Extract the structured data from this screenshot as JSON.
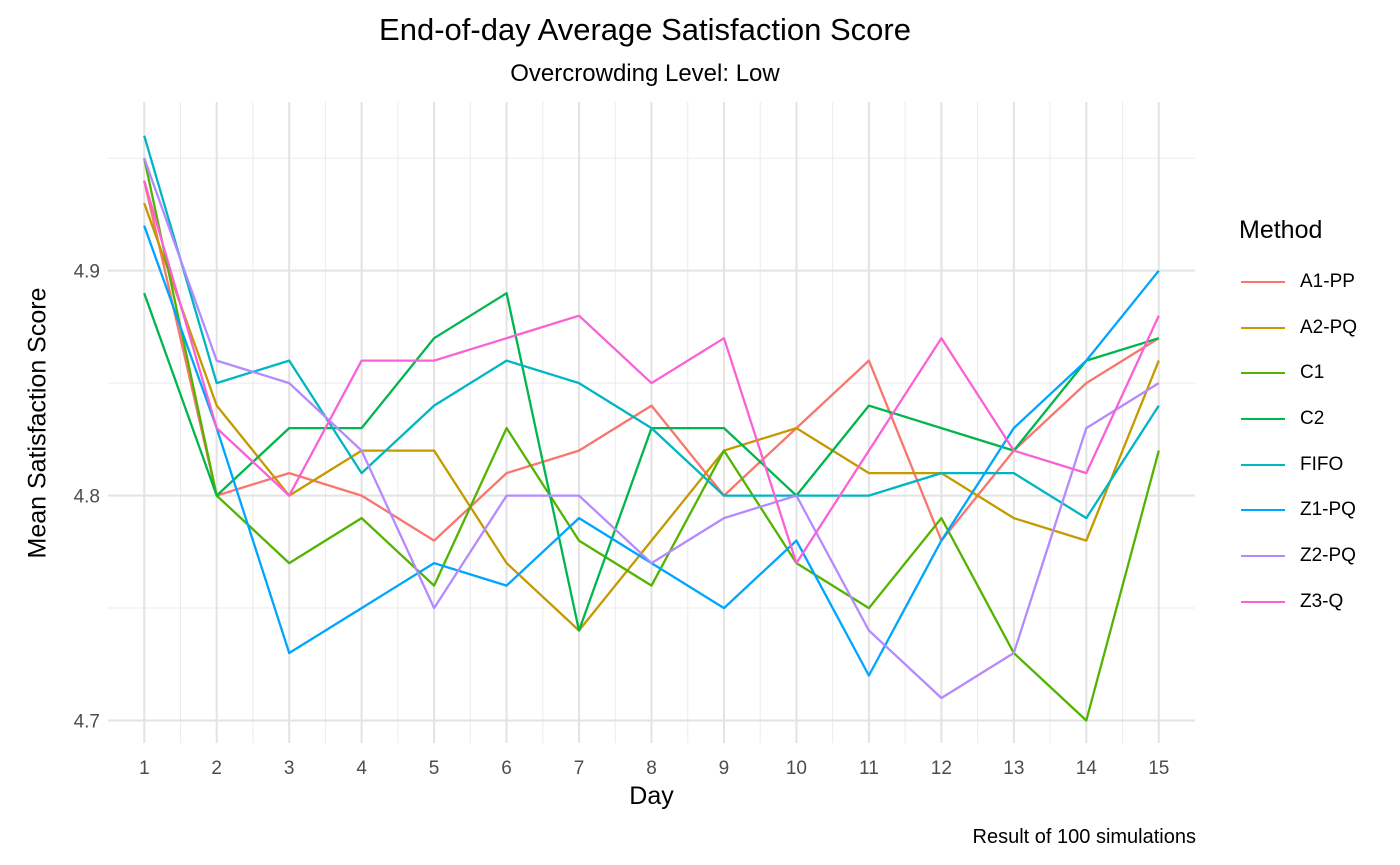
{
  "chart_data": {
    "type": "line",
    "title": "End-of-day Average Satisfaction Score",
    "subtitle": "Overcrowding Level: Low",
    "xlabel": "Day",
    "ylabel": "Mean Satisfaction Score",
    "caption": "Result of 100 simulations",
    "legend_title": "Method",
    "legend_placement": "right",
    "grid": true,
    "x": [
      1,
      2,
      3,
      4,
      5,
      6,
      7,
      8,
      9,
      10,
      11,
      12,
      13,
      14,
      15
    ],
    "xlim": [
      0.5,
      15.5
    ],
    "ylim": [
      4.69,
      4.975
    ],
    "yticks": [
      4.7,
      4.8,
      4.9
    ],
    "ytick_labels": [
      "4.7",
      "4.8",
      "4.9"
    ],
    "series": [
      {
        "name": "A1-PP",
        "color": "#F8766D",
        "values": [
          4.94,
          4.8,
          4.81,
          4.8,
          4.78,
          4.81,
          4.82,
          4.84,
          4.8,
          4.83,
          4.86,
          4.78,
          4.82,
          4.85,
          4.87
        ]
      },
      {
        "name": "A2-PQ",
        "color": "#C49A00",
        "values": [
          4.93,
          4.84,
          4.8,
          4.82,
          4.82,
          4.77,
          4.74,
          4.78,
          4.82,
          4.83,
          4.81,
          4.81,
          4.79,
          4.78,
          4.86
        ]
      },
      {
        "name": "C1",
        "color": "#53B400",
        "values": [
          4.95,
          4.8,
          4.77,
          4.79,
          4.76,
          4.83,
          4.78,
          4.76,
          4.82,
          4.77,
          4.75,
          4.79,
          4.73,
          4.7,
          4.82
        ]
      },
      {
        "name": "C2",
        "color": "#00B64D",
        "values": [
          4.89,
          4.8,
          4.83,
          4.83,
          4.87,
          4.89,
          4.74,
          4.83,
          4.83,
          4.8,
          4.84,
          4.83,
          4.82,
          4.86,
          4.87
        ]
      },
      {
        "name": "FIFO",
        "color": "#00B6C3",
        "values": [
          4.96,
          4.85,
          4.86,
          4.81,
          4.84,
          4.86,
          4.85,
          4.83,
          4.8,
          4.8,
          4.8,
          4.81,
          4.81,
          4.79,
          4.84
        ]
      },
      {
        "name": "Z1-PQ",
        "color": "#00A5FF",
        "values": [
          4.92,
          4.83,
          4.73,
          4.75,
          4.77,
          4.76,
          4.79,
          4.77,
          4.75,
          4.78,
          4.72,
          4.78,
          4.83,
          4.86,
          4.9
        ]
      },
      {
        "name": "Z2-PQ",
        "color": "#B68AFF",
        "values": [
          4.95,
          4.86,
          4.85,
          4.82,
          4.75,
          4.8,
          4.8,
          4.77,
          4.79,
          4.8,
          4.74,
          4.71,
          4.73,
          4.83,
          4.85
        ]
      },
      {
        "name": "Z3-Q",
        "color": "#FB61D7",
        "values": [
          4.94,
          4.83,
          4.8,
          4.86,
          4.86,
          4.87,
          4.88,
          4.85,
          4.87,
          4.77,
          4.82,
          4.87,
          4.82,
          4.81,
          4.88
        ]
      }
    ]
  }
}
